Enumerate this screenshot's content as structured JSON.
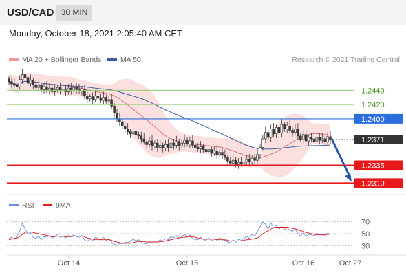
{
  "header": {
    "symbol": "USD/CAD",
    "timeframe": "30 MIN",
    "date_line": "Monday, October 18, 2021 2:05:40 AM CET"
  },
  "legend": {
    "ma20": "MA 20 + Bollinger Bands",
    "ma50": "MA 50",
    "credit": "Research © 2021 Trading Central"
  },
  "rsi_legend": {
    "rsi": "RSI",
    "ma9": "9MA"
  },
  "colors": {
    "candle_up": "#3a3a3a",
    "candle_down": "#3a3a3a",
    "ma20": "#e07070",
    "bollinger_fill": "#fbd9d9",
    "ma50": "#3d5fa8",
    "resistance_green": "#8fcf6f",
    "pivot_blue": "#2a6fdb",
    "support_red": "#e8191b",
    "current_price": "#333333",
    "rsi": "#6b8fd8",
    "rsi_ma": "#e8191b"
  },
  "chart_data": [
    {
      "type": "candlestick",
      "title": "",
      "x_labels": [
        "Oct 14",
        "Oct 15",
        "Oct 16",
        "Oct 27"
      ],
      "ylim": [
        1.2295,
        1.2475
      ],
      "levels": [
        {
          "value": 1.244,
          "label": "1.2440",
          "kind": "resistance"
        },
        {
          "value": 1.242,
          "label": "1.2420",
          "kind": "resistance"
        },
        {
          "value": 1.24,
          "label": "1.2400",
          "kind": "pivot"
        },
        {
          "value": 1.2371,
          "label": "1.2371",
          "kind": "current"
        },
        {
          "value": 1.2335,
          "label": "1.2335",
          "kind": "support"
        },
        {
          "value": 1.231,
          "label": "1.2310",
          "kind": "support"
        }
      ],
      "forecast": {
        "from": 1.2372,
        "to": 1.231
      },
      "series": [
        {
          "name": "MA 20 + Bollinger Bands"
        },
        {
          "name": "MA 50"
        }
      ],
      "candles_close": [
        1.2452,
        1.2449,
        1.2447,
        1.2445,
        1.2455,
        1.2462,
        1.2458,
        1.245,
        1.2454,
        1.2448,
        1.2444,
        1.2447,
        1.2441,
        1.2445,
        1.244,
        1.2443,
        1.2438,
        1.2441,
        1.2444,
        1.244,
        1.2442,
        1.2438,
        1.2443,
        1.244,
        1.2444,
        1.2441,
        1.2439,
        1.2442,
        1.2432,
        1.2428,
        1.2431,
        1.2427,
        1.2432,
        1.2429,
        1.2426,
        1.243,
        1.2425,
        1.2427,
        1.2418,
        1.2408,
        1.24,
        1.2396,
        1.239,
        1.2386,
        1.2382,
        1.2379,
        1.2383,
        1.2378,
        1.2376,
        1.2372,
        1.2368,
        1.2364,
        1.2369,
        1.2362,
        1.2366,
        1.236,
        1.2363,
        1.2359,
        1.2364,
        1.236,
        1.2366,
        1.2363,
        1.2368,
        1.2362,
        1.2366,
        1.237,
        1.2365,
        1.2369,
        1.2363,
        1.236,
        1.2358,
        1.2361,
        1.2357,
        1.2354,
        1.2357,
        1.2352,
        1.2355,
        1.235,
        1.2353,
        1.2349,
        1.2346,
        1.2341,
        1.2338,
        1.2342,
        1.2336,
        1.2339,
        1.2337,
        1.234,
        1.2343,
        1.234,
        1.2345,
        1.2342,
        1.235,
        1.236,
        1.2372,
        1.2381,
        1.2374,
        1.2386,
        1.2379,
        1.2388,
        1.238,
        1.2392,
        1.2386,
        1.239,
        1.2384,
        1.2381,
        1.2386,
        1.2376,
        1.2371,
        1.2378,
        1.2369,
        1.2374,
        1.2372,
        1.2368,
        1.2374,
        1.237,
        1.2372,
        1.2368,
        1.2375,
        1.2371
      ],
      "rsi": {
        "ylim": [
          20,
          80
        ],
        "ticks": [
          70,
          50,
          30
        ],
        "tick_labels": [
          "70",
          "50",
          "30"
        ],
        "values": [
          42,
          44,
          40,
          46,
          55,
          68,
          58,
          50,
          52,
          44,
          42,
          46,
          40,
          45,
          44,
          47,
          43,
          46,
          48,
          44,
          46,
          43,
          47,
          45,
          48,
          45,
          44,
          47,
          40,
          37,
          41,
          38,
          44,
          42,
          40,
          44,
          39,
          42,
          36,
          32,
          30,
          34,
          33,
          36,
          35,
          37,
          41,
          38,
          40,
          36,
          34,
          33,
          38,
          34,
          38,
          36,
          40,
          37,
          42,
          40,
          45,
          43,
          47,
          42,
          45,
          49,
          44,
          48,
          42,
          40,
          40,
          44,
          40,
          39,
          43,
          38,
          42,
          39,
          43,
          40,
          39,
          36,
          35,
          40,
          36,
          41,
          39,
          42,
          46,
          42,
          49,
          46,
          54,
          62,
          70,
          66,
          58,
          68,
          60,
          64,
          58,
          62,
          57,
          60,
          56,
          54,
          58,
          50,
          46,
          52,
          45,
          49,
          48,
          46,
          51,
          48,
          49,
          47,
          51,
          49
        ],
        "ma": [
          40,
          41,
          42,
          43,
          45,
          49,
          52,
          53,
          53,
          52,
          51,
          50,
          49,
          48,
          47,
          46,
          45,
          45,
          46,
          46,
          46,
          45,
          45,
          45,
          46,
          46,
          46,
          46,
          45,
          43,
          42,
          41,
          40,
          40,
          40,
          40,
          40,
          40,
          39,
          37,
          36,
          35,
          34,
          34,
          34,
          34,
          35,
          36,
          37,
          37,
          37,
          36,
          36,
          36,
          36,
          36,
          37,
          37,
          38,
          39,
          40,
          41,
          42,
          43,
          44,
          44,
          45,
          45,
          45,
          44,
          43,
          42,
          41,
          41,
          41,
          41,
          41,
          40,
          40,
          40,
          40,
          39,
          38,
          38,
          38,
          38,
          38,
          39,
          40,
          40,
          41,
          42,
          43,
          46,
          50,
          53,
          55,
          58,
          60,
          61,
          61,
          61,
          61,
          61,
          60,
          59,
          58,
          57,
          55,
          54,
          52,
          51,
          50,
          49,
          48,
          48,
          48,
          48,
          49,
          49
        ]
      }
    }
  ]
}
